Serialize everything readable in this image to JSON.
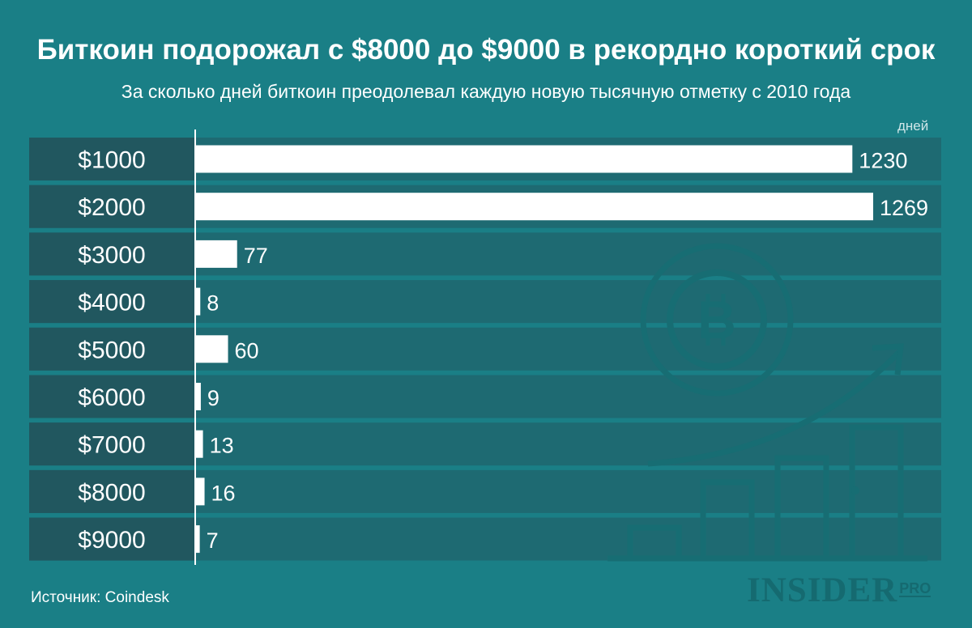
{
  "chart_data": {
    "type": "bar",
    "orientation": "horizontal",
    "title": "Биткоин подорожал с $8000 до $9000 в рекордно короткий срок",
    "subtitle": "За сколько дней биткоин преодолевал каждую новую тысячную отметку с 2010 года",
    "unit_label": "дней",
    "categories": [
      "$1000",
      "$2000",
      "$3000",
      "$4000",
      "$5000",
      "$6000",
      "$7000",
      "$8000",
      "$9000"
    ],
    "values": [
      1230,
      1269,
      77,
      8,
      60,
      9,
      13,
      16,
      7
    ],
    "xlim": [
      0,
      1269
    ],
    "grid": false,
    "legend": "none",
    "colors": {
      "background": "#1a7f86",
      "row_band": "#1e6a72",
      "label_band": "#21575f",
      "bar": "#ffffff",
      "text": "#ffffff",
      "watermark": "#176d73"
    }
  },
  "source": "Источник: Coindesk",
  "logo": {
    "main": "INSIDER",
    "suffix": "PRO"
  },
  "icons": [
    "bitcoin-coin-icon",
    "growth-chart-icon"
  ]
}
